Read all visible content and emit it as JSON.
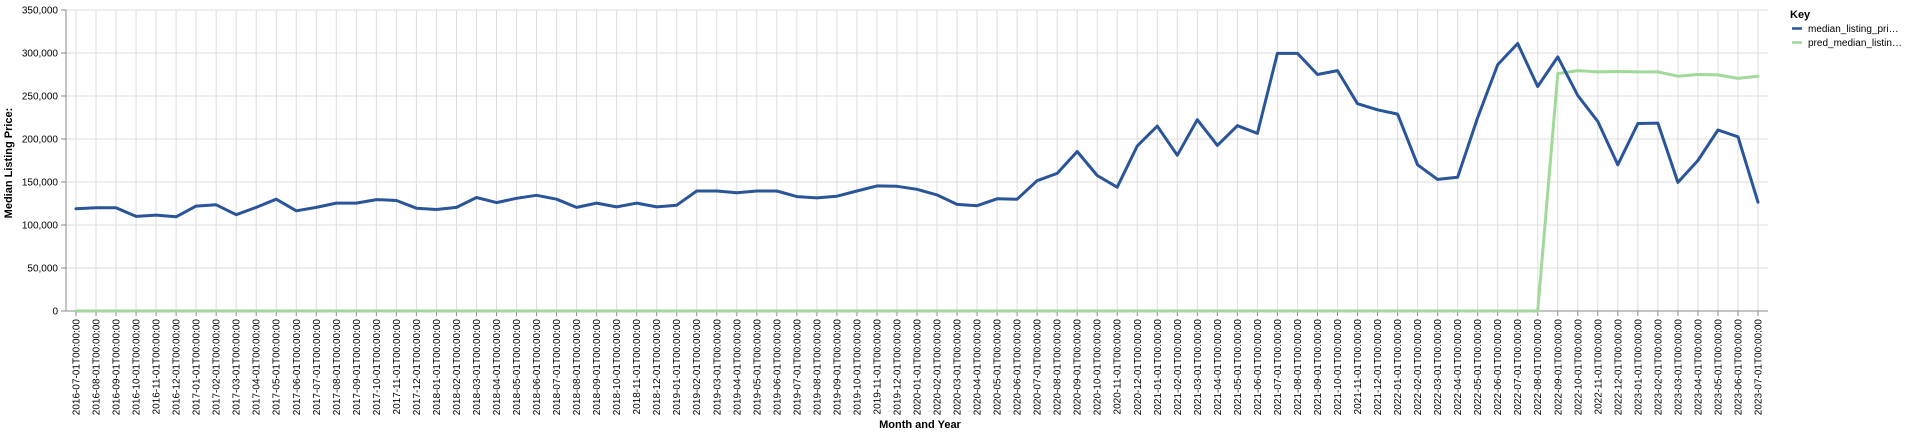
{
  "chart_data": {
    "type": "line",
    "xlabel": "Month and Year",
    "ylabel": "Median Listing Price:",
    "ylim": [
      0,
      350000
    ],
    "yticks": [
      "0",
      "50,000",
      "100,000",
      "150,000",
      "200,000",
      "250,000",
      "300,000",
      "350,000"
    ],
    "yticks_values": [
      0,
      50000,
      100000,
      150000,
      200000,
      250000,
      300000,
      350000
    ],
    "grid": true,
    "legend": {
      "title": "Key",
      "placement": "top-right",
      "entries": [
        {
          "label": "median_listing_pri…",
          "color": "#2a5599"
        },
        {
          "label": "pred_median_listin…",
          "color": "#a1d99b"
        }
      ]
    },
    "x": [
      "2016-07-01T00:00:00",
      "2016-08-01T00:00:00",
      "2016-09-01T00:00:00",
      "2016-10-01T00:00:00",
      "2016-11-01T00:00:00",
      "2016-12-01T00:00:00",
      "2017-01-01T00:00:00",
      "2017-02-01T00:00:00",
      "2017-03-01T00:00:00",
      "2017-04-01T00:00:00",
      "2017-05-01T00:00:00",
      "2017-06-01T00:00:00",
      "2017-07-01T00:00:00",
      "2017-08-01T00:00:00",
      "2017-09-01T00:00:00",
      "2017-10-01T00:00:00",
      "2017-11-01T00:00:00",
      "2017-12-01T00:00:00",
      "2018-01-01T00:00:00",
      "2018-02-01T00:00:00",
      "2018-03-01T00:00:00",
      "2018-04-01T00:00:00",
      "2018-05-01T00:00:00",
      "2018-06-01T00:00:00",
      "2018-07-01T00:00:00",
      "2018-08-01T00:00:00",
      "2018-09-01T00:00:00",
      "2018-10-01T00:00:00",
      "2018-11-01T00:00:00",
      "2018-12-01T00:00:00",
      "2019-01-01T00:00:00",
      "2019-02-01T00:00:00",
      "2019-03-01T00:00:00",
      "2019-04-01T00:00:00",
      "2019-05-01T00:00:00",
      "2019-06-01T00:00:00",
      "2019-07-01T00:00:00",
      "2019-08-01T00:00:00",
      "2019-09-01T00:00:00",
      "2019-10-01T00:00:00",
      "2019-11-01T00:00:00",
      "2019-12-01T00:00:00",
      "2020-01-01T00:00:00",
      "2020-02-01T00:00:00",
      "2020-03-01T00:00:00",
      "2020-04-01T00:00:00",
      "2020-05-01T00:00:00",
      "2020-06-01T00:00:00",
      "2020-07-01T00:00:00",
      "2020-08-01T00:00:00",
      "2020-09-01T00:00:00",
      "2020-10-01T00:00:00",
      "2020-11-01T00:00:00",
      "2020-12-01T00:00:00",
      "2021-01-01T00:00:00",
      "2021-02-01T00:00:00",
      "2021-03-01T00:00:00",
      "2021-04-01T00:00:00",
      "2021-05-01T00:00:00",
      "2021-06-01T00:00:00",
      "2021-07-01T00:00:00",
      "2021-08-01T00:00:00",
      "2021-09-01T00:00:00",
      "2021-10-01T00:00:00",
      "2021-11-01T00:00:00",
      "2021-12-01T00:00:00",
      "2022-01-01T00:00:00",
      "2022-02-01T00:00:00",
      "2022-03-01T00:00:00",
      "2022-04-01T00:00:00",
      "2022-05-01T00:00:00",
      "2022-06-01T00:00:00",
      "2022-07-01T00:00:00",
      "2022-08-01T00:00:00",
      "2022-09-01T00:00:00",
      "2022-10-01T00:00:00",
      "2022-11-01T00:00:00",
      "2022-12-01T00:00:00",
      "2023-01-01T00:00:00",
      "2023-02-01T00:00:00",
      "2023-03-01T00:00:00",
      "2023-04-01T00:00:00",
      "2023-05-01T00:00:00",
      "2023-06-01T00:00:00",
      "2023-07-01T00:00:00"
    ],
    "series": [
      {
        "name": "median_listing_pri…",
        "color": "#2a5599",
        "values": [
          119000,
          120000,
          120000,
          110000,
          111500,
          109500,
          122000,
          123500,
          112000,
          120500,
          130000,
          116500,
          120500,
          125500,
          125500,
          129500,
          128500,
          119500,
          118000,
          120500,
          132000,
          126000,
          131000,
          134500,
          130000,
          120500,
          125500,
          121000,
          125500,
          121000,
          123000,
          139500,
          139500,
          137500,
          139500,
          139500,
          133000,
          131500,
          133500,
          139500,
          145500,
          145000,
          141500,
          135000,
          124000,
          122500,
          130500,
          130000,
          151500,
          160000,
          185500,
          157500,
          144000,
          192000,
          215000,
          181000,
          222500,
          192500,
          215500,
          206500,
          299500,
          299500,
          275000,
          279500,
          241000,
          234000,
          229000,
          170000,
          153000,
          155500,
          225000,
          286500,
          311000,
          261000,
          295500,
          250500,
          220500,
          170000,
          218000,
          218500,
          149500,
          175000,
          210500,
          202500,
          126500
        ]
      },
      {
        "name": "pred_median_listin…",
        "color": "#a1d99b",
        "values": [
          0,
          0,
          0,
          0,
          0,
          0,
          0,
          0,
          0,
          0,
          0,
          0,
          0,
          0,
          0,
          0,
          0,
          0,
          0,
          0,
          0,
          0,
          0,
          0,
          0,
          0,
          0,
          0,
          0,
          0,
          0,
          0,
          0,
          0,
          0,
          0,
          0,
          0,
          0,
          0,
          0,
          0,
          0,
          0,
          0,
          0,
          0,
          0,
          0,
          0,
          0,
          0,
          0,
          0,
          0,
          0,
          0,
          0,
          0,
          0,
          0,
          0,
          0,
          0,
          0,
          0,
          0,
          0,
          0,
          0,
          0,
          0,
          0,
          0,
          276000,
          279500,
          278000,
          278500,
          278000,
          278000,
          273000,
          275000,
          274500,
          270500,
          273000
        ]
      }
    ]
  }
}
